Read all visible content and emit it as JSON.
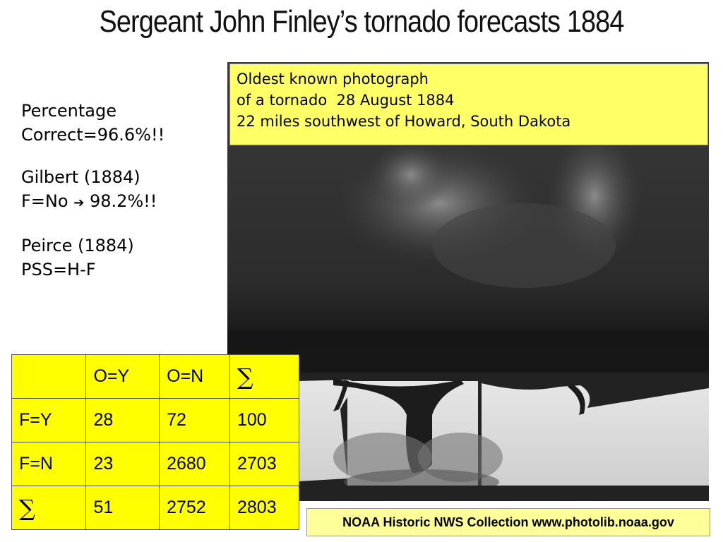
{
  "slide": {
    "title": "Sergeant John Finley’s tornado forecasts 1884"
  },
  "stats": {
    "line1": "Percentage",
    "line2": "Correct=96.6%!!",
    "line3": "Gilbert (1884)",
    "line4_prefix": "F=No",
    "line4_arrow": "➔",
    "line4_value": "98.2%!!",
    "line5": "Peirce (1884)",
    "line6": "PSS=H-F"
  },
  "photo": {
    "caption_line1": "Oldest known photograph",
    "caption_line2": "of a tornado  28 August 1884",
    "caption_line3": "22 miles southwest of Howard, South Dakota",
    "credit": "NOAA Historic NWS Collection www.photolib.noaa.gov"
  },
  "table": {
    "header": [
      "",
      "O=Y",
      "O=N",
      "∑"
    ],
    "rows": [
      [
        "F=Y",
        "28",
        "72",
        "100"
      ],
      [
        "F=N",
        "23",
        "2680",
        "2703"
      ],
      [
        "∑",
        "51",
        "2752",
        "2803"
      ]
    ]
  },
  "colors": {
    "table_bg": "#ffff00",
    "caption_bg": "#ffff66",
    "credit_bg": "#ffff99"
  }
}
